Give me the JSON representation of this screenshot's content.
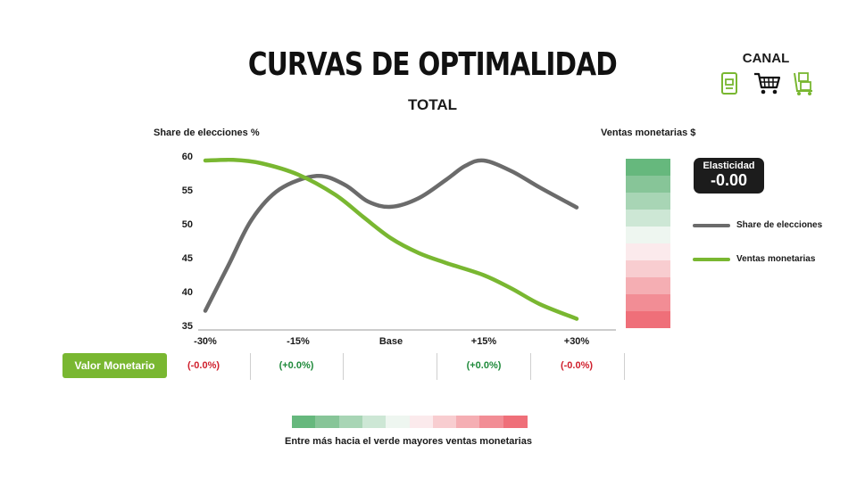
{
  "header": {
    "title": "CURVAS DE OPTIMALIDAD",
    "subtitle": "TOTAL",
    "canal_label": "CANAL",
    "canal_icons": [
      "receipt-icon",
      "shopping-cart-icon",
      "delivery-cart-icon"
    ]
  },
  "chart_data": {
    "type": "line",
    "ylabel": "Share de elecciones %",
    "ylabel_right": "Ventas monetarias $",
    "x": [
      "-30%",
      "-15%",
      "Base",
      "+15%",
      "+30%"
    ],
    "yticks": [
      "60",
      "55",
      "50",
      "45",
      "40",
      "35"
    ],
    "ylim": [
      35,
      60
    ],
    "series": [
      {
        "name": "Share de elecciones",
        "color": "#6b6b6b",
        "values": [
          [
            0,
            37.2
          ],
          [
            0.25,
            44
          ],
          [
            0.5,
            50.8
          ],
          [
            0.8,
            55.3
          ],
          [
            1.2,
            57.3
          ],
          [
            1.5,
            56.0
          ],
          [
            1.75,
            53.5
          ],
          [
            2.0,
            52.7
          ],
          [
            2.3,
            54.0
          ],
          [
            2.6,
            56.8
          ],
          [
            2.8,
            58.8
          ],
          [
            3.0,
            59.6
          ],
          [
            3.3,
            58.0
          ],
          [
            3.6,
            55.6
          ],
          [
            4.0,
            52.6
          ]
        ]
      },
      {
        "name": "Ventas monetarias",
        "color": "#79b731",
        "values": [
          [
            0,
            59.6
          ],
          [
            0.3,
            59.7
          ],
          [
            0.6,
            59.2
          ],
          [
            1.0,
            57.5
          ],
          [
            1.4,
            54.5
          ],
          [
            1.7,
            51.2
          ],
          [
            2.0,
            48.0
          ],
          [
            2.3,
            45.8
          ],
          [
            2.6,
            44.3
          ],
          [
            3.0,
            42.5
          ],
          [
            3.3,
            40.5
          ],
          [
            3.6,
            38.2
          ],
          [
            4.0,
            36.0
          ]
        ]
      }
    ],
    "grid": false,
    "legend_position": "right"
  },
  "elasticity": {
    "label": "Elasticidad",
    "value": "-0.00"
  },
  "legend": [
    {
      "label": "Share de elecciones",
      "color": "#6b6b6b"
    },
    {
      "label": "Ventas monetarias",
      "color": "#79b731"
    }
  ],
  "color_scale": [
    "#66b87d",
    "#87c598",
    "#a8d5b5",
    "#cde7d5",
    "#eef6f0",
    "#fbeaec",
    "#f8cdd0",
    "#f5aeb3",
    "#f28d95",
    "#ef6f79"
  ],
  "valor_monetario": {
    "label": "Valor Monetario",
    "values": [
      {
        "text": "(-0.0%)",
        "color": "#d0202d"
      },
      {
        "text": "(+0.0%)",
        "color": "#1f8a3b"
      },
      {
        "text": "",
        "color": "#111111"
      },
      {
        "text": "(+0.0%)",
        "color": "#1f8a3b"
      },
      {
        "text": "(-0.0%)",
        "color": "#d0202d"
      }
    ]
  },
  "caption": "Entre más hacia el verde mayores ventas monetarias"
}
